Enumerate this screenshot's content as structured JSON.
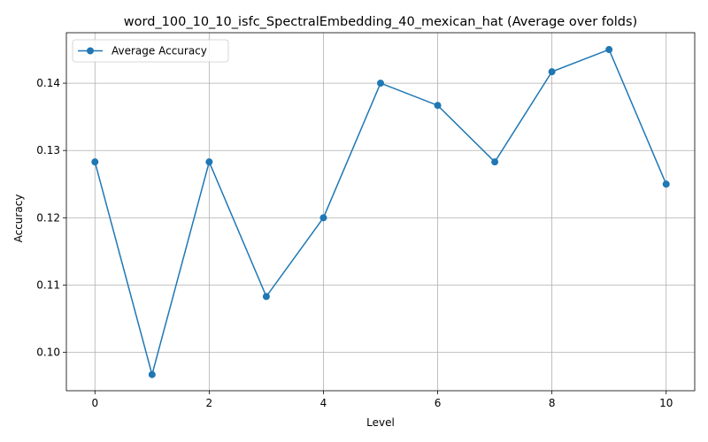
{
  "chart_data": {
    "type": "line",
    "title": "word_100_10_10_isfc_SpectralEmbedding_40_mexican_hat (Average over folds)",
    "xlabel": "Level",
    "ylabel": "Accuracy",
    "xlim": [
      -0.5,
      10.5
    ],
    "ylim": [
      0.0943,
      0.1475
    ],
    "xticks": [
      0,
      2,
      4,
      6,
      8,
      10
    ],
    "yticks": [
      0.1,
      0.11,
      0.12,
      0.13,
      0.14
    ],
    "ytick_labels": [
      "0.10",
      "0.11",
      "0.12",
      "0.13",
      "0.14"
    ],
    "grid": true,
    "legend_position": "top-left",
    "x": [
      0,
      1,
      2,
      3,
      4,
      5,
      6,
      7,
      8,
      9,
      10
    ],
    "series": [
      {
        "name": "Average Accuracy",
        "color": "#1f77b4",
        "marker": "circle",
        "values": [
          0.1283,
          0.0967,
          0.1283,
          0.1083,
          0.12,
          0.14,
          0.1367,
          0.1283,
          0.1417,
          0.145,
          0.125
        ]
      }
    ]
  }
}
